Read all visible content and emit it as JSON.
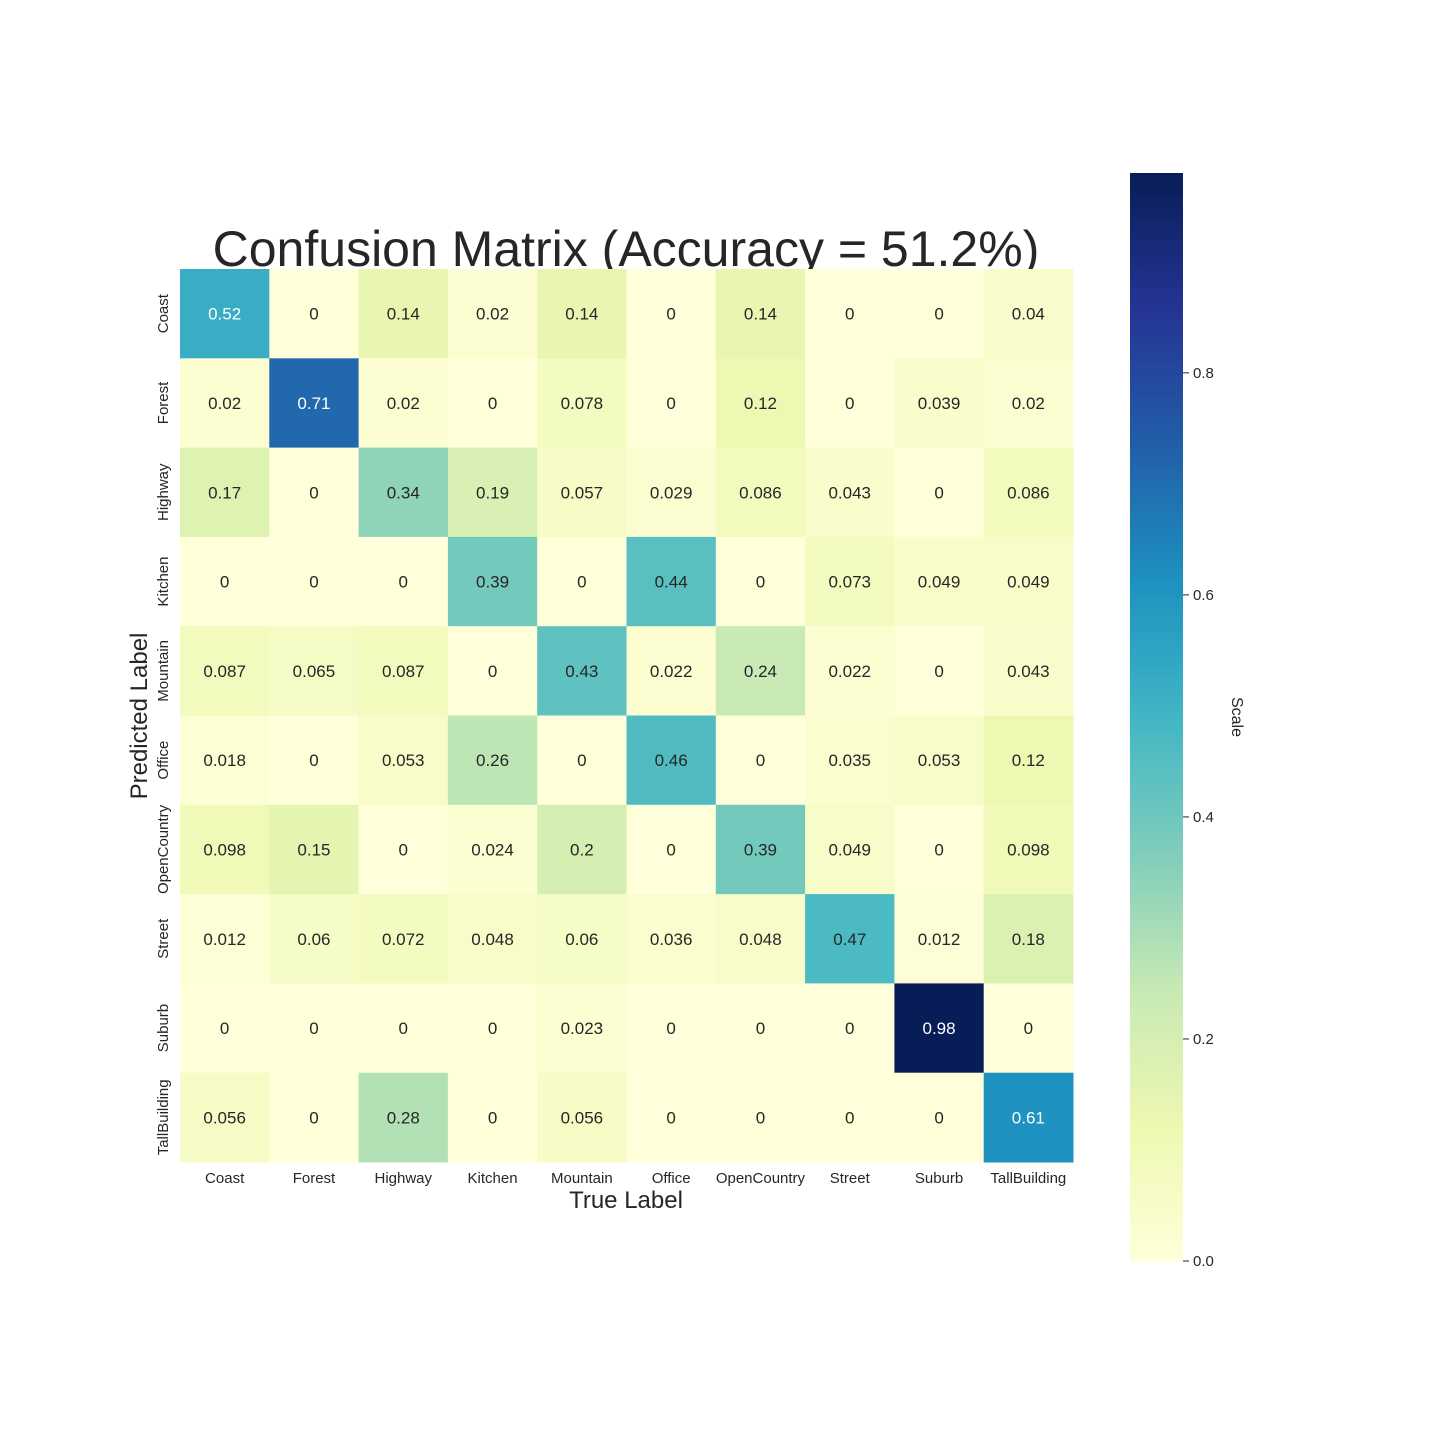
{
  "chart_data": {
    "type": "heatmap",
    "title": "Confusion Matrix (Accuracy = 51.2%)",
    "xlabel": "True Label",
    "ylabel": "Predicted Label",
    "x_categories": [
      "Coast",
      "Forest",
      "Highway",
      "Kitchen",
      "Mountain",
      "Office",
      "OpenCountry",
      "Street",
      "Suburb",
      "TallBuilding"
    ],
    "y_categories": [
      "Coast",
      "Forest",
      "Highway",
      "Kitchen",
      "Mountain",
      "Office",
      "OpenCountry",
      "Street",
      "Suburb",
      "TallBuilding"
    ],
    "values": [
      [
        "0.52",
        "0",
        "0.14",
        "0.02",
        "0.14",
        "0",
        "0.14",
        "0",
        "0",
        "0.04"
      ],
      [
        "0.02",
        "0.71",
        "0.02",
        "0",
        "0.078",
        "0",
        "0.12",
        "0",
        "0.039",
        "0.02"
      ],
      [
        "0.17",
        "0",
        "0.34",
        "0.19",
        "0.057",
        "0.029",
        "0.086",
        "0.043",
        "0",
        "0.086"
      ],
      [
        "0",
        "0",
        "0",
        "0.39",
        "0",
        "0.44",
        "0",
        "0.073",
        "0.049",
        "0.049"
      ],
      [
        "0.087",
        "0.065",
        "0.087",
        "0",
        "0.43",
        "0.022",
        "0.24",
        "0.022",
        "0",
        "0.043"
      ],
      [
        "0.018",
        "0",
        "0.053",
        "0.26",
        "0",
        "0.46",
        "0",
        "0.035",
        "0.053",
        "0.12"
      ],
      [
        "0.098",
        "0.15",
        "0",
        "0.024",
        "0.2",
        "0",
        "0.39",
        "0.049",
        "0",
        "0.098"
      ],
      [
        "0.012",
        "0.06",
        "0.072",
        "0.048",
        "0.06",
        "0.036",
        "0.048",
        "0.47",
        "0.012",
        "0.18"
      ],
      [
        "0",
        "0",
        "0",
        "0",
        "0.023",
        "0",
        "0",
        "0",
        "0.98",
        "0"
      ],
      [
        "0.056",
        "0",
        "0.28",
        "0",
        "0.056",
        "0",
        "0",
        "0",
        "0",
        "0.61"
      ]
    ],
    "colorbar": {
      "label": "Scale",
      "colormap": "YlGnBu",
      "range": [
        0,
        0.98
      ],
      "ticks": [
        "0.0",
        "0.2",
        "0.4",
        "0.6",
        "0.8"
      ]
    }
  }
}
